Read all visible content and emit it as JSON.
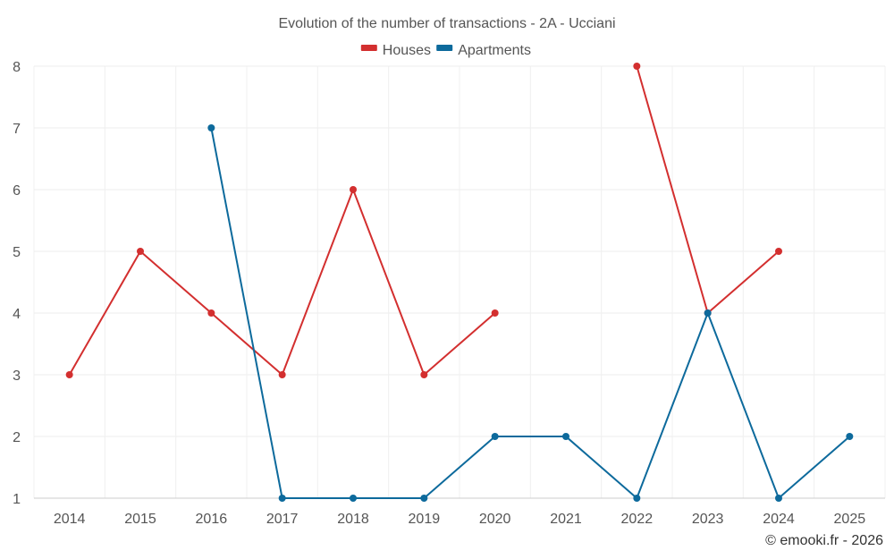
{
  "chart_data": {
    "type": "line",
    "title": "Evolution of the number of transactions - 2A - Ucciani",
    "categories": [
      "2014",
      "2015",
      "2016",
      "2017",
      "2018",
      "2019",
      "2020",
      "2021",
      "2022",
      "2023",
      "2024",
      "2025"
    ],
    "ylim": [
      1,
      8
    ],
    "yticks": [
      1,
      2,
      3,
      4,
      5,
      6,
      7,
      8
    ],
    "grid": true,
    "legend_position": "top-center",
    "series": [
      {
        "name": "Houses",
        "color": "#d32f2f",
        "values": [
          3,
          5,
          4,
          3,
          6,
          3,
          4,
          null,
          8,
          4,
          5,
          null
        ]
      },
      {
        "name": "Apartments",
        "color": "#0d6a9c",
        "values": [
          null,
          null,
          7,
          1,
          1,
          1,
          2,
          2,
          1,
          4,
          1,
          2
        ]
      }
    ],
    "credit": "© emooki.fr - 2026"
  }
}
